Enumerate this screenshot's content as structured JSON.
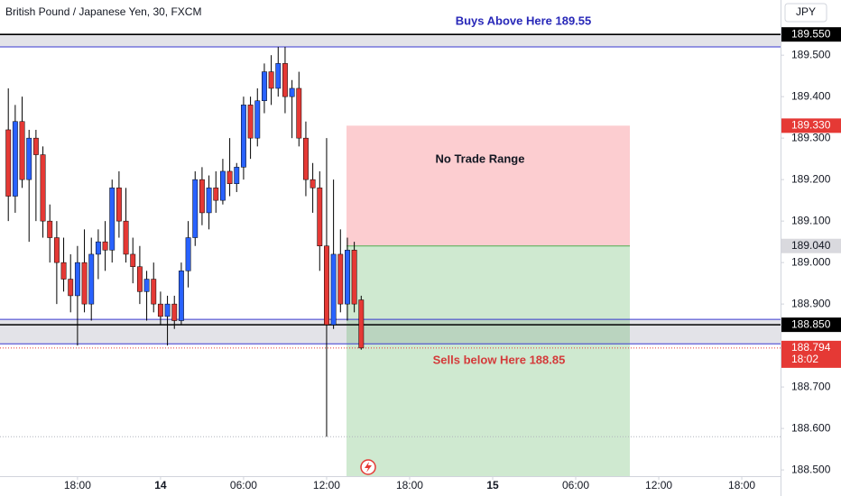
{
  "chart_data": {
    "type": "candlestick",
    "title": "British Pound / Japanese Yen, 30, FXCM",
    "currency": "JPY",
    "up_color": "#2962ff",
    "down_color": "#e53935",
    "x": [
      0,
      1,
      2,
      3,
      4,
      5,
      6,
      7,
      8,
      9,
      10,
      11,
      12,
      13,
      14,
      15,
      16,
      17,
      18,
      19,
      20,
      21,
      22,
      23,
      24,
      25,
      26,
      27,
      28,
      29,
      30,
      31,
      32,
      33,
      34,
      35,
      36,
      37,
      38,
      39,
      40,
      41,
      42,
      43,
      44,
      45,
      46,
      47,
      48,
      49,
      50,
      51
    ],
    "open": [
      189.32,
      189.16,
      189.34,
      189.2,
      189.3,
      189.26,
      189.1,
      189.06,
      189.0,
      188.96,
      188.92,
      189.0,
      188.9,
      189.02,
      189.05,
      189.03,
      189.18,
      189.1,
      189.02,
      188.99,
      188.93,
      188.96,
      188.9,
      188.87,
      188.9,
      188.86,
      188.98,
      189.06,
      189.2,
      189.12,
      189.18,
      189.15,
      189.22,
      189.19,
      189.23,
      189.38,
      189.3,
      189.39,
      189.46,
      189.42,
      189.48,
      189.4,
      189.42,
      189.3,
      189.2,
      189.18,
      189.04,
      188.85,
      189.02,
      188.9,
      189.03,
      188.91
    ],
    "high": [
      189.42,
      189.38,
      189.4,
      189.32,
      189.32,
      189.28,
      189.14,
      189.1,
      189.06,
      189.02,
      189.04,
      189.08,
      189.06,
      189.08,
      189.1,
      189.2,
      189.22,
      189.18,
      189.06,
      189.04,
      188.98,
      189.0,
      188.93,
      188.92,
      188.92,
      189.0,
      189.1,
      189.22,
      189.23,
      189.21,
      189.22,
      189.25,
      189.3,
      189.24,
      189.4,
      189.4,
      189.42,
      189.48,
      189.5,
      189.52,
      189.52,
      189.44,
      189.46,
      189.34,
      189.24,
      189.22,
      189.3,
      189.2,
      189.08,
      189.06,
      189.05,
      188.92
    ],
    "low": [
      189.1,
      189.12,
      189.18,
      189.05,
      189.1,
      189.06,
      189.0,
      188.9,
      188.93,
      188.88,
      188.8,
      188.88,
      188.86,
      188.96,
      188.98,
      189.0,
      189.06,
      189.0,
      188.95,
      188.9,
      188.86,
      188.88,
      188.85,
      188.8,
      188.84,
      188.85,
      188.94,
      189.04,
      189.09,
      189.08,
      189.12,
      189.14,
      189.16,
      189.17,
      189.2,
      189.25,
      189.28,
      189.36,
      189.38,
      189.4,
      189.36,
      189.3,
      189.28,
      189.16,
      189.12,
      188.98,
      188.58,
      188.84,
      188.88,
      188.86,
      188.88,
      188.79
    ],
    "close": [
      189.16,
      189.34,
      189.2,
      189.3,
      189.26,
      189.1,
      189.06,
      189.0,
      188.96,
      188.92,
      189.0,
      188.9,
      189.02,
      189.05,
      189.03,
      189.18,
      189.1,
      189.02,
      188.99,
      188.93,
      188.96,
      188.9,
      188.87,
      188.9,
      188.86,
      188.98,
      189.06,
      189.2,
      189.12,
      189.18,
      189.15,
      189.22,
      189.19,
      189.23,
      189.38,
      189.3,
      189.39,
      189.46,
      189.42,
      189.48,
      189.4,
      189.42,
      189.3,
      189.2,
      189.18,
      189.04,
      188.85,
      189.02,
      188.9,
      189.03,
      188.9,
      188.794
    ],
    "xlim": [
      -1.2,
      111.6
    ],
    "ylim": [
      188.485,
      189.633
    ],
    "xticks": [
      {
        "value": 10,
        "label": "18:00"
      },
      {
        "value": 22,
        "label": "14"
      },
      {
        "value": 34,
        "label": "06:00"
      },
      {
        "value": 46,
        "label": "12:00"
      },
      {
        "value": 58,
        "label": "18:00"
      },
      {
        "value": 70,
        "label": "15"
      },
      {
        "value": 82,
        "label": "06:00"
      },
      {
        "value": 94,
        "label": "12:00"
      },
      {
        "value": 106,
        "label": "18:00"
      }
    ],
    "yticks": [
      {
        "value": 188.5,
        "label": "188.500"
      },
      {
        "value": 188.6,
        "label": "188.600"
      },
      {
        "value": 188.7,
        "label": "188.700"
      },
      {
        "value": 188.9,
        "label": "188.900"
      },
      {
        "value": 189.0,
        "label": "189.000"
      },
      {
        "value": 189.1,
        "label": "189.100"
      },
      {
        "value": 189.2,
        "label": "189.200"
      },
      {
        "value": 189.3,
        "label": "189.300"
      },
      {
        "value": 189.4,
        "label": "189.400"
      },
      {
        "value": 189.5,
        "label": "189.500"
      }
    ],
    "bands": [
      {
        "from": 189.55,
        "to": 189.52,
        "color": "#e3e3e8"
      },
      {
        "from": 188.863,
        "to": 188.804,
        "color": "#e3e3e8"
      }
    ],
    "levels": [
      {
        "value": 189.55,
        "color": "#000000"
      },
      {
        "value": 189.52,
        "color": "#3a3ad0"
      },
      {
        "value": 188.863,
        "color": "#3a3ad0"
      },
      {
        "value": 188.85,
        "color": "#000000"
      },
      {
        "value": 188.804,
        "color": "#3a3ad0"
      }
    ],
    "dotted_levels": [
      {
        "value": 188.794,
        "color": "#e53935"
      },
      {
        "value": 188.58,
        "color": "#b0b3bb"
      }
    ],
    "position": {
      "stop": 189.33,
      "entry": 189.04,
      "target": 188.485
    },
    "price_labels": [
      {
        "value": 189.55,
        "label": "189.550",
        "bg": "#000000",
        "fg": "#ffffff"
      },
      {
        "value": 189.33,
        "label": "189.330",
        "bg": "#e53935",
        "fg": "#ffffff"
      },
      {
        "value": 189.04,
        "label": "189.040",
        "bg": "#d9d9de",
        "fg": "#131722"
      },
      {
        "value": 188.85,
        "label": "188.850",
        "bg": "#000000",
        "fg": "#ffffff"
      },
      {
        "value": 188.794,
        "label": "188.794",
        "bg": "#e53935",
        "fg": "#ffffff"
      }
    ],
    "countdown": "18:02",
    "annotations": [
      {
        "text": "Buys Above Here 189.55",
        "color": "#2727b8"
      },
      {
        "text": "No Trade Range",
        "color": "#131722"
      },
      {
        "text": "Sells below Here 188.85",
        "color": "#d43a3a"
      }
    ]
  }
}
